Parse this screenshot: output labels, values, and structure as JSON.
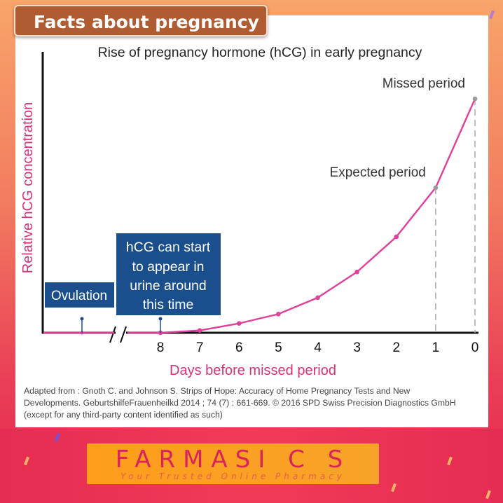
{
  "header": {
    "badge_text": "Facts about pregnancy"
  },
  "chart_data": {
    "type": "line",
    "title": "Rise of pregnancy hormone (hCG) in early pregnancy",
    "xlabel": "Days before missed period",
    "ylabel": "Relative hCG concentration",
    "x_ticks": [
      "8",
      "7",
      "6",
      "5",
      "4",
      "3",
      "2",
      "1",
      "0"
    ],
    "series": [
      {
        "values": [
          0,
          0.01,
          0.04,
          0.08,
          0.15,
          0.26,
          0.41,
          0.62,
          1.0
        ]
      }
    ],
    "pre_break_segment": "flat at 0 before axis break",
    "annotations": [
      {
        "text": "Missed period",
        "x": "0",
        "y": 1.0
      },
      {
        "text": "Expected period",
        "x": "1",
        "y": 0.62
      }
    ],
    "boxes": [
      {
        "text": "Ovulation"
      },
      {
        "lines": [
          "hCG can start",
          "to appear in",
          "urine around",
          "this time"
        ]
      }
    ],
    "grid": false,
    "colors": {
      "line": "#e0409a",
      "axis_label": "#d9307a",
      "box": "#1a4e8c",
      "dashed": "#aaaaaa"
    }
  },
  "caption": {
    "line1": "Adapted from : Gnoth C. and Johnson S. Strips of Hope: Accuracy of Home Pregnancy Tests and New",
    "line2": "Developments. GeburtshilfeFrauenheilkd 2014 ; 74 (7) : 661-669. © 2016 SPD Swiss Precision Diagnostics GmbH",
    "line3": "(except for any third-party content identified as such)"
  },
  "brand": {
    "name": "FARMASI C S",
    "tagline": "Your Trusted Online Pharmacy",
    "colors": {
      "logo_bg": "#ff9d1c",
      "logo_text": "#d8245a"
    }
  }
}
